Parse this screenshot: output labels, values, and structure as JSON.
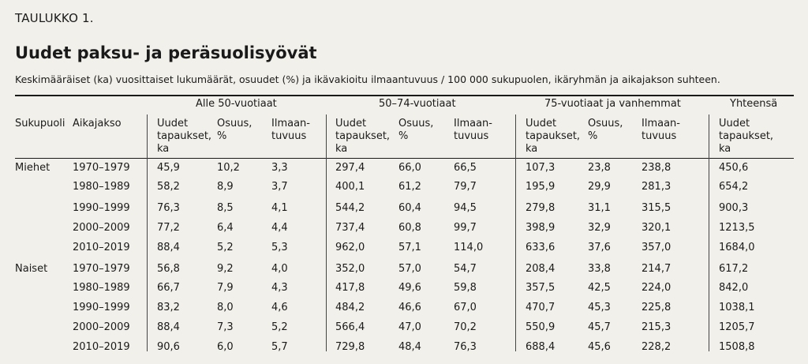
{
  "label": "TAULUKKO 1.",
  "title": "Uudet paksu- ja peräsuolisyövät",
  "subtitle": "Keskimääräiset (ka) vuosittaiset lukumäärät, osuudet (%) ja ikävakioitu ilmaantuvuus / 100 000 sukupuolen, ikäryhmän ja aikajakson suhteen.",
  "groups": [
    "Alle 50-vuotiaat",
    "50–74-vuotiaat",
    "75-vuotiaat ja vanhemmat",
    "Yhteensä"
  ],
  "headers": {
    "sex": "Sukupuoli",
    "period": "Aikajakso",
    "cases": "Uudet\ntapaukset,\nka",
    "share": "Osuus,\n%",
    "incidence": "Ilmaan-\ntuvuus"
  },
  "blocks": [
    {
      "sex": "Miehet",
      "rows": [
        [
          "1970–1979",
          "45,9",
          "10,2",
          "3,3",
          "297,4",
          "66,0",
          "66,5",
          "107,3",
          "23,8",
          "238,8",
          "450,6"
        ],
        [
          "1980–1989",
          "58,2",
          "8,9",
          "3,7",
          "400,1",
          "61,2",
          "79,7",
          "195,9",
          "29,9",
          "281,3",
          "654,2"
        ],
        [
          "1990–1999",
          "76,3",
          "8,5",
          "4,1",
          "544,2",
          "60,4",
          "94,5",
          "279,8",
          "31,1",
          "315,5",
          "900,3"
        ],
        [
          "2000–2009",
          "77,2",
          "6,4",
          "4,4",
          "737,4",
          "60,8",
          "99,7",
          "398,9",
          "32,9",
          "320,1",
          "1213,5"
        ],
        [
          "2010–2019",
          "88,4",
          "5,2",
          "5,3",
          "962,0",
          "57,1",
          "114,0",
          "633,6",
          "37,6",
          "357,0",
          "1684,0"
        ]
      ]
    },
    {
      "sex": "Naiset",
      "rows": [
        [
          "1970–1979",
          "56,8",
          "9,2",
          "4,0",
          "352,0",
          "57,0",
          "54,7",
          "208,4",
          "33,8",
          "214,7",
          "617,2"
        ],
        [
          "1980–1989",
          "66,7",
          "7,9",
          "4,3",
          "417,8",
          "49,6",
          "59,8",
          "357,5",
          "42,5",
          "224,0",
          "842,0"
        ],
        [
          "1990–1999",
          "83,2",
          "8,0",
          "4,6",
          "484,2",
          "46,6",
          "67,0",
          "470,7",
          "45,3",
          "225,8",
          "1038,1"
        ],
        [
          "2000–2009",
          "88,4",
          "7,3",
          "5,2",
          "566,4",
          "47,0",
          "70,2",
          "550,9",
          "45,7",
          "215,3",
          "1205,7"
        ],
        [
          "2010–2019",
          "90,6",
          "6,0",
          "5,7",
          "729,8",
          "48,4",
          "76,3",
          "688,4",
          "45,6",
          "228,2",
          "1508,8"
        ]
      ]
    }
  ]
}
